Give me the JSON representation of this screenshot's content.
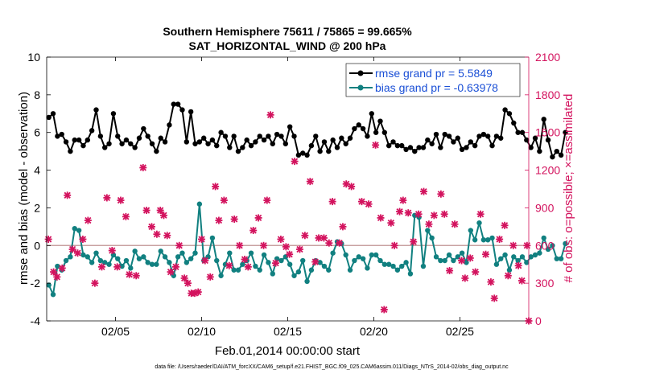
{
  "chart_data": {
    "type": "line",
    "title_line1": "Southern Hemisphere 75611 / 75865 = 99.665%",
    "title_line2": "SAT_HORIZONTAL_WIND @ 200 hPa",
    "xlabel": "Feb.01,2014 00:00:00 start",
    "ylabel_left": "rmse and bias (model - observation)",
    "ylabel_right": "# of obs: o=possible; ×=assimilated",
    "footnote": "data file: /Users/raeder/DAI/ATM_forcXX/CAM6_setup/f.e21.FHIST_BGC.f09_025.CAM6assim.011/Diags_NTrS_2014-02/obs_diag_output.nc",
    "x_range_days": [
      1,
      29
    ],
    "x_ticks": [
      {
        "day": 5,
        "label": "02/05"
      },
      {
        "day": 10,
        "label": "02/10"
      },
      {
        "day": 15,
        "label": "02/15"
      },
      {
        "day": 20,
        "label": "02/20"
      },
      {
        "day": 25,
        "label": "02/25"
      }
    ],
    "ylim_left": [
      -4,
      10
    ],
    "yticks_left": [
      "-4",
      "-2",
      "0",
      "2",
      "4",
      "6",
      "8",
      "10"
    ],
    "ylim_right": [
      0,
      2100
    ],
    "yticks_right": [
      "0",
      "300",
      "600",
      "900",
      "1200",
      "1500",
      "1800",
      "2100"
    ],
    "zero_line": 0,
    "legend_position": "top-right",
    "colors": {
      "rmse": "#000000",
      "bias": "#118080",
      "obs": "#d3135e",
      "legend_text": "#1a4fd6",
      "zero_line": "#c8a0a0"
    },
    "series": [
      {
        "name": "rmse grand pr = 5.5849",
        "axis": "left",
        "x_start": 1.125,
        "x_step": 0.25,
        "values": [
          6.8,
          7.0,
          5.8,
          5.9,
          5.5,
          5.0,
          5.6,
          5.6,
          5.3,
          5.6,
          6.1,
          7.2,
          5.8,
          5.2,
          5.4,
          7.0,
          5.8,
          5.4,
          5.6,
          5.4,
          5.2,
          5.7,
          6.2,
          5.8,
          5.4,
          5.0,
          5.7,
          5.5,
          6.4,
          7.5,
          7.5,
          7.2,
          5.5,
          7.1,
          5.4,
          5.5,
          5.7,
          5.4,
          5.6,
          5.3,
          6.0,
          5.8,
          5.2,
          5.8,
          5.0,
          5.2,
          5.6,
          5.3,
          5.5,
          5.8,
          5.6,
          5.8,
          5.4,
          5.9,
          5.8,
          5.4,
          6.3,
          5.8,
          4.8,
          4.9,
          4.8,
          5.3,
          5.8,
          5.0,
          5.5,
          5.0,
          5.6,
          5.2,
          5.7,
          5.4,
          5.7,
          6.2,
          6.4,
          6.2,
          5.8,
          7.0,
          6.0,
          6.6,
          6.0,
          5.3,
          5.5,
          5.3,
          5.3,
          5.1,
          5.2,
          5.0,
          5.2,
          5.2,
          5.6,
          5.4,
          5.9,
          5.2,
          5.9,
          5.8,
          5.5,
          5.7,
          5.1,
          5.2,
          5.5,
          5.3,
          5.8,
          5.9,
          5.8,
          5.3,
          5.8,
          5.7,
          7.2,
          7.0,
          6.5,
          6.0,
          6.0,
          5.6,
          5.2,
          5.7,
          5.0,
          6.7,
          5.6,
          4.7,
          5.0,
          4.8,
          6.0
        ]
      },
      {
        "name": "bias grand pr = -0.63978",
        "axis": "left",
        "x_start": 1.125,
        "x_step": 0.25,
        "values": [
          -2.1,
          -2.6,
          -1.1,
          -1.3,
          -0.8,
          -0.6,
          0.9,
          0.8,
          -0.5,
          -0.6,
          -0.9,
          -0.4,
          -0.8,
          -0.9,
          -1.0,
          -0.5,
          -0.7,
          -1.1,
          -0.8,
          -1.2,
          -0.3,
          -0.7,
          -0.6,
          -0.9,
          -1.0,
          -1.0,
          -0.3,
          -0.6,
          -0.9,
          -1.6,
          -0.6,
          -0.4,
          -0.9,
          -0.7,
          -0.4,
          2.2,
          -0.8,
          -0.6,
          0.4,
          -0.8,
          -1.6,
          -1.0,
          -0.4,
          -1.3,
          -1.3,
          -1.0,
          -0.8,
          -0.4,
          -1.1,
          -1.3,
          -0.5,
          -0.9,
          -1.5,
          -0.7,
          -0.8,
          -0.6,
          -1.0,
          -1.6,
          -1.4,
          -0.8,
          -1.9,
          -1.3,
          -0.8,
          -0.9,
          -1.1,
          -1.3,
          -0.4,
          0.2,
          0.1,
          -0.5,
          -1.3,
          -0.8,
          -0.6,
          -0.7,
          -1.2,
          -0.5,
          -0.5,
          -0.8,
          -1.0,
          -1.0,
          -1.1,
          -1.3,
          -1.1,
          -0.9,
          -1.5,
          1.6,
          1.5,
          -1.1,
          0.8,
          0.4,
          -0.6,
          -0.8,
          -0.8,
          -0.5,
          -0.8,
          -0.6,
          -0.4,
          -0.9,
          0.8,
          0.3,
          1.2,
          0.3,
          0.3,
          0.4,
          -1.0,
          -0.7,
          -0.5,
          -1.3,
          -0.6,
          -0.8,
          -0.6,
          -0.9,
          -0.6,
          -0.5,
          -0.4,
          0.4,
          -0.2,
          0.0,
          -0.7,
          -0.7,
          0.1
        ]
      },
      {
        "name": "obs assimilated",
        "axis": "right",
        "marker": "x",
        "points": [
          [
            1.1,
            650
          ],
          [
            1.4,
            390
          ],
          [
            1.6,
            350
          ],
          [
            1.9,
            420
          ],
          [
            2.2,
            1000
          ],
          [
            2.5,
            570
          ],
          [
            2.8,
            540
          ],
          [
            3.1,
            650
          ],
          [
            3.4,
            800
          ],
          [
            3.8,
            300
          ],
          [
            4.2,
            430
          ],
          [
            4.5,
            980
          ],
          [
            4.8,
            560
          ],
          [
            5.1,
            430
          ],
          [
            5.3,
            960
          ],
          [
            5.6,
            830
          ],
          [
            5.8,
            370
          ],
          [
            6.2,
            360
          ],
          [
            6.6,
            1220
          ],
          [
            6.8,
            880
          ],
          [
            7.1,
            750
          ],
          [
            7.4,
            690
          ],
          [
            7.6,
            880
          ],
          [
            7.8,
            840
          ],
          [
            8.0,
            680
          ],
          [
            8.2,
            390
          ],
          [
            8.5,
            430
          ],
          [
            8.7,
            600
          ],
          [
            9.0,
            340
          ],
          [
            9.2,
            300
          ],
          [
            9.4,
            220
          ],
          [
            9.6,
            220
          ],
          [
            9.8,
            230
          ],
          [
            10.0,
            650
          ],
          [
            10.2,
            480
          ],
          [
            10.5,
            350
          ],
          [
            10.8,
            1070
          ],
          [
            11.0,
            800
          ],
          [
            11.3,
            960
          ],
          [
            11.6,
            440
          ],
          [
            11.9,
            810
          ],
          [
            12.2,
            600
          ],
          [
            12.5,
            490
          ],
          [
            12.7,
            430
          ],
          [
            13.0,
            720
          ],
          [
            13.3,
            820
          ],
          [
            13.6,
            600
          ],
          [
            13.8,
            960
          ],
          [
            14.0,
            1640
          ],
          [
            14.3,
            460
          ],
          [
            14.6,
            650
          ],
          [
            14.9,
            590
          ],
          [
            15.1,
            530
          ],
          [
            15.4,
            1270
          ],
          [
            15.7,
            570
          ],
          [
            16.0,
            680
          ],
          [
            16.3,
            1110
          ],
          [
            16.6,
            470
          ],
          [
            16.8,
            660
          ],
          [
            17.1,
            660
          ],
          [
            17.4,
            620
          ],
          [
            17.6,
            950
          ],
          [
            18.0,
            620
          ],
          [
            18.2,
            750
          ],
          [
            18.4,
            1090
          ],
          [
            18.7,
            1070
          ],
          [
            19.0,
            1830
          ],
          [
            19.3,
            950
          ],
          [
            19.7,
            930
          ],
          [
            20.1,
            1400
          ],
          [
            20.4,
            820
          ],
          [
            20.6,
            90
          ],
          [
            21.0,
            780
          ],
          [
            21.2,
            600
          ],
          [
            21.5,
            870
          ],
          [
            21.7,
            960
          ],
          [
            22.0,
            860
          ],
          [
            22.3,
            630
          ],
          [
            22.6,
            850
          ],
          [
            22.9,
            1030
          ],
          [
            23.2,
            770
          ],
          [
            23.5,
            840
          ],
          [
            23.9,
            1010
          ],
          [
            24.1,
            850
          ],
          [
            24.4,
            400
          ],
          [
            24.7,
            770
          ],
          [
            25.1,
            480
          ],
          [
            25.3,
            340
          ],
          [
            25.6,
            500
          ],
          [
            25.9,
            390
          ],
          [
            26.2,
            850
          ],
          [
            26.5,
            530
          ],
          [
            26.8,
            310
          ],
          [
            27.0,
            180
          ],
          [
            27.3,
            650
          ],
          [
            27.6,
            760
          ],
          [
            27.8,
            360
          ],
          [
            28.1,
            600
          ],
          [
            28.4,
            440
          ],
          [
            28.6,
            320
          ],
          [
            28.9,
            600
          ],
          [
            29.0,
            0
          ]
        ]
      }
    ]
  }
}
